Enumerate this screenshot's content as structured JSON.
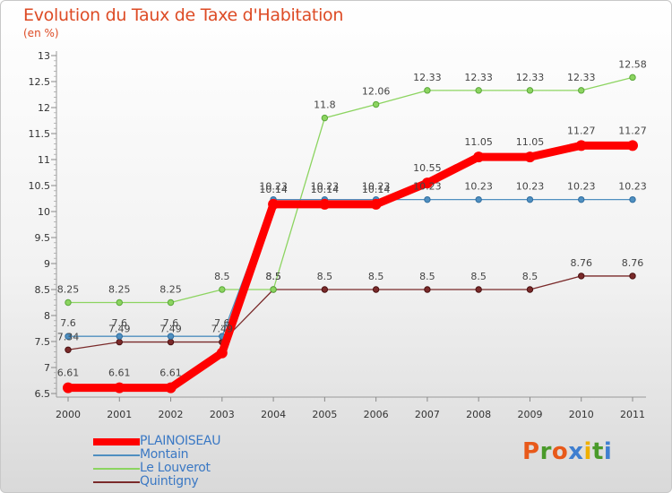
{
  "title": "Evolution du Taux de Taxe d'Habitation",
  "unit": "(en %)",
  "brand": "Proxiti",
  "brand_colors": [
    "#e8591a",
    "#4a9a2a",
    "#e8591a",
    "#3f7fd0",
    "#f0b000",
    "#4a9a2a",
    "#3f7fd0"
  ],
  "chart_data": {
    "type": "line",
    "title": "Evolution du Taux de Taxe d'Habitation",
    "xlabel": "",
    "ylabel": "(en %)",
    "ylim": [
      6.5,
      13
    ],
    "yticks": [
      "6.5",
      "7",
      "7.5",
      "8",
      "8.5",
      "9",
      "9.5",
      "10",
      "10.5",
      "11",
      "11.5",
      "12",
      "12.5",
      "13"
    ],
    "categories": [
      "2000",
      "2001",
      "2002",
      "2003",
      "2004",
      "2005",
      "2006",
      "2007",
      "2008",
      "2009",
      "2010",
      "2011"
    ],
    "grid": false,
    "legend_position": "bottom-left",
    "series": [
      {
        "name": "PLAINOISEAU",
        "color": "#ff0000",
        "values": [
          6.61,
          6.61,
          6.61,
          7.28,
          10.14,
          10.14,
          10.14,
          10.55,
          11.05,
          11.05,
          11.27,
          11.27
        ],
        "labels": [
          "6.61",
          "6.61",
          "6.61",
          "",
          "10.14",
          "10.14",
          "10.14",
          "10.55",
          "11.05",
          "11.05",
          "11.27",
          "11.27"
        ]
      },
      {
        "name": "Montain",
        "color": "#4f8fc0",
        "values": [
          7.6,
          7.6,
          7.6,
          7.6,
          10.23,
          10.23,
          10.23,
          10.23,
          10.23,
          10.23,
          10.23,
          10.23
        ],
        "labels": [
          "7.6",
          "7.6",
          "7.6",
          "7.6",
          "10.23",
          "10.23",
          "10.23",
          "10.23",
          "10.23",
          "10.23",
          "10.23",
          "10.23"
        ]
      },
      {
        "name": "Le Louverot",
        "color": "#8cd460",
        "values": [
          8.25,
          8.25,
          8.25,
          8.5,
          8.5,
          11.8,
          12.06,
          12.33,
          12.33,
          12.33,
          12.33,
          12.58
        ],
        "labels": [
          "8.25",
          "8.25",
          "8.25",
          "8.5",
          "8.5",
          "11.8",
          "12.06",
          "12.33",
          "12.33",
          "12.33",
          "12.33",
          "12.58"
        ]
      },
      {
        "name": "Quintigny",
        "color": "#7a2a2a",
        "values": [
          7.34,
          7.49,
          7.49,
          7.49,
          8.5,
          8.5,
          8.5,
          8.5,
          8.5,
          8.5,
          8.76,
          8.76
        ],
        "labels": [
          "7.34",
          "7.49",
          "7.49",
          "7.49",
          "8.5",
          "8.5",
          "8.5",
          "8.5",
          "8.5",
          "8.5",
          "8.76",
          "8.76"
        ]
      }
    ]
  }
}
